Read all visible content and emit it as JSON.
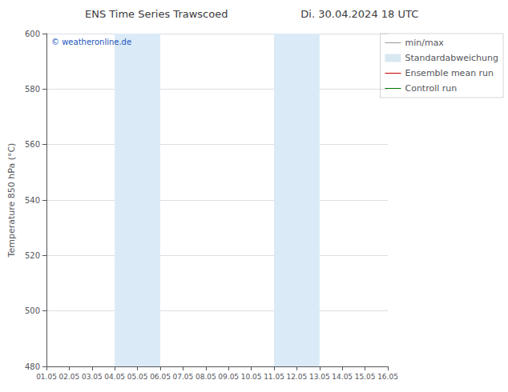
{
  "chart_data": {
    "type": "line",
    "title": "ENS Time Series Trawscoed",
    "subtitle": "Di. 30.04.2024 18 UTC",
    "y_label": "Temperature 850 hPa (°C)",
    "categories": [
      "01.05",
      "02.05",
      "03.05",
      "04.05",
      "05.05",
      "06.05",
      "07.05",
      "08.05",
      "09.05",
      "10.05",
      "11.05",
      "12.05",
      "13.05",
      "14.05",
      "15.05",
      "16.05"
    ],
    "series": [
      {
        "name": "min/max",
        "type": "line",
        "color": "#999999",
        "values": [
          null,
          null,
          null,
          null,
          null,
          null,
          null,
          null,
          null,
          null,
          null,
          null,
          null,
          null,
          null,
          null
        ]
      },
      {
        "name": "Standardabweichung",
        "type": "area",
        "color": "#d8e8f0",
        "values": [
          null,
          null,
          null,
          null,
          null,
          null,
          null,
          null,
          null,
          null,
          null,
          null,
          null,
          null,
          null,
          null
        ]
      },
      {
        "name": "Ensemble mean run",
        "type": "line",
        "color": "#cc0000",
        "values": [
          null,
          null,
          null,
          null,
          null,
          null,
          null,
          null,
          null,
          null,
          null,
          null,
          null,
          null,
          null,
          null
        ]
      },
      {
        "name": "Controll run",
        "type": "line",
        "color": "#007700",
        "values": [
          null,
          null,
          null,
          null,
          null,
          null,
          null,
          null,
          null,
          null,
          null,
          null,
          null,
          null,
          null,
          null
        ]
      }
    ],
    "bands": [
      {
        "from": "04.05",
        "to": "06.05",
        "color": "#daeaf7"
      },
      {
        "from": "11.05",
        "to": "13.05",
        "color": "#daeaf7"
      }
    ],
    "annotations": [
      {
        "text": "© weatheronline.de",
        "color": "#2255bb"
      }
    ],
    "ylim": [
      480,
      600
    ],
    "yticks": [
      480,
      500,
      520,
      540,
      560,
      580,
      600
    ],
    "grid": "y",
    "legend": "upper right"
  }
}
